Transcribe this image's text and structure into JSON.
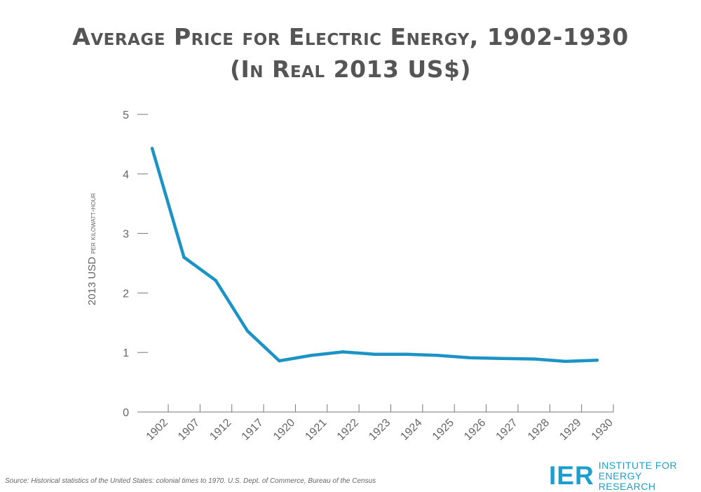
{
  "chart_data": {
    "type": "line",
    "title_line1": "Average Price for Electric Energy, 1902-1930",
    "title_line2": "(In Real 2013 US$)",
    "ylabel_main": "2013 USD",
    "ylabel_small": "per kilowatt-hour",
    "xlabel": "",
    "ylim": [
      0,
      5
    ],
    "yticks": [
      0,
      1,
      2,
      3,
      4,
      5
    ],
    "categories": [
      "1902",
      "1907",
      "1912",
      "1917",
      "1920",
      "1921",
      "1922",
      "1923",
      "1924",
      "1925",
      "1926",
      "1927",
      "1928",
      "1929",
      "1930"
    ],
    "series": [
      {
        "color": "#1b93c4",
        "values": [
          4.43,
          2.6,
          2.21,
          1.36,
          0.86,
          0.95,
          1.01,
          0.97,
          0.97,
          0.95,
          0.91,
          0.9,
          0.89,
          0.85,
          0.87
        ]
      }
    ],
    "grid": false,
    "legend": "none"
  },
  "source": "Source: Historical statistics of the United States: colonial times to 1970. U.S. Dept. of Commerce, Bureau of the Census",
  "logo": {
    "mark": "IER",
    "line1": "INSTITUTE FOR",
    "line2": "ENERGY RESEARCH"
  },
  "colors": {
    "accent": "#1b93c4",
    "logo": "#1a9fd0",
    "text": "#555555"
  }
}
